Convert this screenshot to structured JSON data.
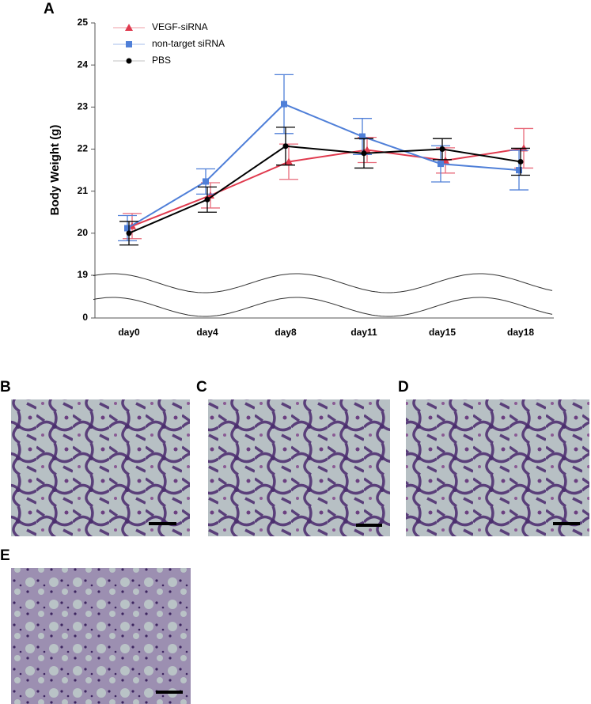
{
  "panels": [
    "A",
    "B",
    "C",
    "D",
    "E"
  ],
  "chart_data": {
    "type": "line",
    "y_label": "Body Weight (g)",
    "categories": [
      "day0",
      "day4",
      "day8",
      "day11",
      "day15",
      "day18"
    ],
    "ylim": [
      19,
      25
    ],
    "yticks": [
      19,
      20,
      21,
      22,
      23,
      24,
      25
    ],
    "break_ticks": [
      0
    ],
    "axis_break": true,
    "series": [
      {
        "name": "VEGF-siRNA",
        "color": "#e03a4e",
        "marker": "triangle",
        "values": [
          20.17,
          20.9,
          21.7,
          21.98,
          21.73,
          22.02
        ],
        "errors": [
          0.3,
          0.3,
          0.42,
          0.3,
          0.3,
          0.47
        ]
      },
      {
        "name": "non-target siRNA",
        "color": "#4f7fd8",
        "marker": "square",
        "values": [
          20.12,
          21.23,
          23.07,
          22.3,
          21.65,
          21.5
        ],
        "errors": [
          0.3,
          0.3,
          0.7,
          0.43,
          0.43,
          0.47
        ]
      },
      {
        "name": "PBS",
        "color": "#000000",
        "marker": "circle",
        "values": [
          20.0,
          20.8,
          22.07,
          21.9,
          22.0,
          21.7
        ],
        "errors": [
          0.28,
          0.3,
          0.45,
          0.35,
          0.25,
          0.32
        ]
      }
    ]
  }
}
